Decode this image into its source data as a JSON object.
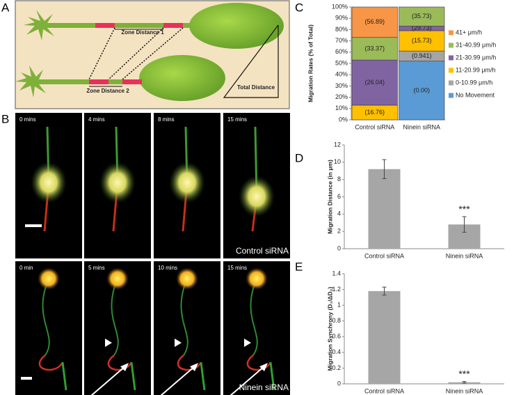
{
  "panel_letters": [
    "A",
    "B",
    "C",
    "D",
    "E"
  ],
  "diagram": {
    "labels": [
      "Zone Distance 1",
      "Zone Distance 2",
      "Total Distance"
    ]
  },
  "micrographs": {
    "rows": [
      {
        "times": [
          "0 mins",
          "4 mins",
          "8 mins",
          "15 mins"
        ],
        "condition": "Control siRNA"
      },
      {
        "times": [
          "0 min",
          "5 mins",
          "10 mins",
          "15 mins"
        ],
        "condition": "Ninein siRNA"
      }
    ]
  },
  "chart_data": [
    {
      "type": "stacked_bar",
      "y_label": "Migration Rates (% of Total)",
      "categories": [
        "Control siRNA",
        "Ninein siRNA"
      ],
      "ylim": [
        0,
        100
      ],
      "yticks": [
        {
          "value": 0,
          "label": "0%"
        },
        {
          "value": 10,
          "label": "10%"
        },
        {
          "value": 20,
          "label": "20%"
        },
        {
          "value": 30,
          "label": "30%"
        },
        {
          "value": 40,
          "label": "40%"
        },
        {
          "value": 50,
          "label": "50%"
        },
        {
          "value": 60,
          "label": "60%"
        },
        {
          "value": 70,
          "label": "70%"
        },
        {
          "value": 80,
          "label": "80%"
        },
        {
          "value": 90,
          "label": "90%"
        },
        {
          "value": 100,
          "label": "100%"
        }
      ],
      "legend": "right",
      "series": [
        {
          "name": "No Movement",
          "color": "#5b9bd5",
          "values": [
            0,
            52
          ],
          "speed_labels": [
            null,
            "(0.00)"
          ]
        },
        {
          "name": "0-10.99 μm/h",
          "color": "#a5a5a5",
          "values": [
            0,
            9
          ],
          "speed_labels": [
            null,
            "(0.941)"
          ]
        },
        {
          "name": "11-20.99 μm/h",
          "color": "#ffc000",
          "values": [
            13,
            18
          ],
          "speed_labels": [
            "(16.76)",
            "(15.73)"
          ]
        },
        {
          "name": "21-30.99 μm/h",
          "color": "#8064a2",
          "values": [
            40,
            4
          ],
          "speed_labels": [
            "(26.04)",
            "(29.73)"
          ]
        },
        {
          "name": "31-40.99 μm/h",
          "color": "#9bbb59",
          "values": [
            20,
            17
          ],
          "speed_labels": [
            "(33.37)",
            "(35.73)"
          ]
        },
        {
          "name": "41+ μm/h",
          "color": "#f79646",
          "values": [
            27,
            0
          ],
          "speed_labels": [
            "(56.89)",
            null
          ]
        }
      ]
    },
    {
      "type": "bar",
      "y_label": "Migration Distance (in μm)",
      "categories": [
        "Control siRNA",
        "Ninein siRNA"
      ],
      "values": [
        9.2,
        2.8
      ],
      "errors": [
        1.1,
        0.9
      ],
      "significance": [
        null,
        "***"
      ],
      "color": "#a6a6a6",
      "ylim": [
        0,
        12
      ],
      "yticks": [
        0,
        2,
        4,
        6,
        8,
        10,
        12
      ]
    },
    {
      "type": "bar",
      "y_label": "Migration Synchrony (D₁/ΔD₂)",
      "categories": [
        "Control siRNA",
        "Ninein siRNA"
      ],
      "values": [
        1.18,
        0.02
      ],
      "errors": [
        0.05,
        0.01
      ],
      "significance": [
        null,
        "***"
      ],
      "color": "#a6a6a6",
      "ylim": [
        0,
        1.4
      ],
      "yticks": [
        0,
        0.2,
        0.4,
        0.6,
        0.8,
        1,
        1.2,
        1.4
      ]
    }
  ]
}
